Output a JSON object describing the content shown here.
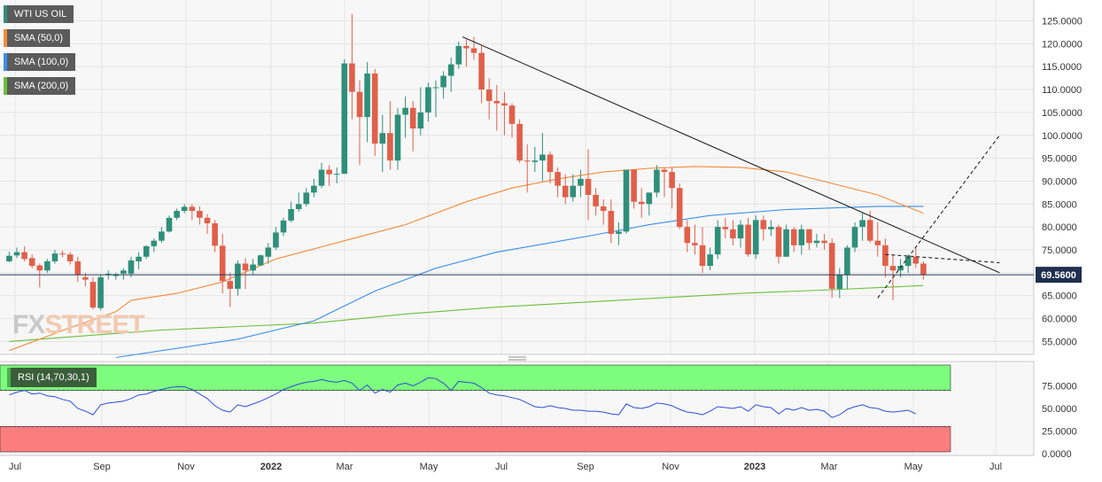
{
  "legend": [
    {
      "label": "WTI US OIL",
      "color": "#2f8f7a"
    },
    {
      "label": "SMA (50,0)",
      "color": "#f28a3a"
    },
    {
      "label": "SMA (100,0)",
      "color": "#3a8ee6"
    },
    {
      "label": "SMA (200,0)",
      "color": "#6abf3a"
    }
  ],
  "rsi_legend": {
    "label": "RSI (14,70,30,1)",
    "color": "#4caf50"
  },
  "watermark": {
    "fx": "FX",
    "street": "STREET"
  },
  "last_price": {
    "label": "69.5600",
    "value": 69.56
  },
  "colors": {
    "up": "#2f8f7a",
    "down": "#e0604a",
    "sma50": "#f28a3a",
    "sma100": "#3a8ee6",
    "sma200": "#6abf3a",
    "rsi_line": "#2b4fd4",
    "overbought_zone": "#7dfc7d",
    "oversold_zone": "#fc7d7d"
  },
  "chart_data": [
    {
      "type": "candlestick",
      "title": "WTI US OIL",
      "y_ticks": [
        "125.0000",
        "120.0000",
        "115.0000",
        "110.0000",
        "105.0000",
        "100.0000",
        "95.0000",
        "90.0000",
        "85.0000",
        "80.0000",
        "75.0000",
        "70.0000",
        "65.0000",
        "60.0000",
        "55.0000"
      ],
      "ylim": [
        51,
        128
      ],
      "x_ticks": [
        "Jul",
        "Sep",
        "Nov",
        "2022",
        "Mar",
        "May",
        "Jul",
        "Sep",
        "Nov",
        "2023",
        "Mar",
        "May",
        "Jul"
      ],
      "candles": [
        [
          72.5,
          73.7,
          72.3,
          74.6
        ],
        [
          73.8,
          74.5,
          73.2,
          75.5
        ],
        [
          74.5,
          73.0,
          72.5,
          75.8
        ],
        [
          73.2,
          71.5,
          71.0,
          74.0
        ],
        [
          71.6,
          70.5,
          66.8,
          72.0
        ],
        [
          70.5,
          72.5,
          70.0,
          73.0
        ],
        [
          72.5,
          74.2,
          72.0,
          75.0
        ],
        [
          74.2,
          74.0,
          73.4,
          74.8
        ],
        [
          74.0,
          72.5,
          71.8,
          74.5
        ],
        [
          72.5,
          69.5,
          68.0,
          73.5
        ],
        [
          69.0,
          68.5,
          67.0,
          70.0
        ],
        [
          68.0,
          62.4,
          62.0,
          69.0
        ],
        [
          62.3,
          69.0,
          61.8,
          69.5
        ],
        [
          69.5,
          69.8,
          68.5,
          70.5
        ],
        [
          69.3,
          69.7,
          68.5,
          70.0
        ],
        [
          69.8,
          70.5,
          68.5,
          71.0
        ],
        [
          69.8,
          72.7,
          69.0,
          73.5
        ],
        [
          72.5,
          73.5,
          70.8,
          74.5
        ],
        [
          73.5,
          75.8,
          73.0,
          76.0
        ],
        [
          75.8,
          77.0,
          74.5,
          77.5
        ],
        [
          77.0,
          79.0,
          76.5,
          80.0
        ],
        [
          79.0,
          82.0,
          78.8,
          82.5
        ],
        [
          82.0,
          83.5,
          81.5,
          84.0
        ],
        [
          83.5,
          84.4,
          83.0,
          85.0
        ],
        [
          84.4,
          83.5,
          81.5,
          85.0
        ],
        [
          83.5,
          82.0,
          80.5,
          84.5
        ],
        [
          82.0,
          80.8,
          78.5,
          82.8
        ],
        [
          80.8,
          75.9,
          74.5,
          81.5
        ],
        [
          75.9,
          68.2,
          65.5,
          78.5
        ],
        [
          68.2,
          66.5,
          62.5,
          70.0
        ],
        [
          66.5,
          72.0,
          65.0,
          72.7
        ],
        [
          72.0,
          70.5,
          66.5,
          73.2
        ],
        [
          70.5,
          71.8,
          69.5,
          73.0
        ],
        [
          71.6,
          73.8,
          71.5,
          74.0
        ],
        [
          73.5,
          75.5,
          72.0,
          76.5
        ],
        [
          75.5,
          78.8,
          75.0,
          80.0
        ],
        [
          78.8,
          81.4,
          78.0,
          82.0
        ],
        [
          81.4,
          83.9,
          81.0,
          85.5
        ],
        [
          83.9,
          85.0,
          83.3,
          87.5
        ],
        [
          85.0,
          87.5,
          84.5,
          88.5
        ],
        [
          87.5,
          89.0,
          86.5,
          90.5
        ],
        [
          89.0,
          92.5,
          88.5,
          94.0
        ],
        [
          92.5,
          91.5,
          89.0,
          93.5
        ],
        [
          91.5,
          91.6,
          89.5,
          93.0
        ],
        [
          91.6,
          115.7,
          91.6,
          116.6
        ],
        [
          115.7,
          109.5,
          103.5,
          126.5
        ],
        [
          109.5,
          104.0,
          93.5,
          112.0
        ],
        [
          104.0,
          113.5,
          98.5,
          116.0
        ],
        [
          113.5,
          98.2,
          95.5,
          114.5
        ],
        [
          98.2,
          100.5,
          92.0,
          104.5
        ],
        [
          100.5,
          94.5,
          92.5,
          107.5
        ],
        [
          94.5,
          104.5,
          92.5,
          106.0
        ],
        [
          104.5,
          106.0,
          99.5,
          108.5
        ],
        [
          106.0,
          101.5,
          96.5,
          107.5
        ],
        [
          101.5,
          105.0,
          100.0,
          110.5
        ],
        [
          105.0,
          110.5,
          103.0,
          111.5
        ],
        [
          110.5,
          110.5,
          104.0,
          112.0
        ],
        [
          110.5,
          113.0,
          108.0,
          114.0
        ],
        [
          113.0,
          115.5,
          109.5,
          117.0
        ],
        [
          115.5,
          119.5,
          114.5,
          120.5
        ],
        [
          119.5,
          119.0,
          115.0,
          121.0
        ],
        [
          119.0,
          118.0,
          116.5,
          121.5
        ],
        [
          118.0,
          110.0,
          107.0,
          119.5
        ],
        [
          110.0,
          107.5,
          103.5,
          112.5
        ],
        [
          107.5,
          107.0,
          101.0,
          111.0
        ],
        [
          107.0,
          106.5,
          100.0,
          109.5
        ],
        [
          106.5,
          102.5,
          99.5,
          107.0
        ],
        [
          102.5,
          94.5,
          94.0,
          103.5
        ],
        [
          94.5,
          94.3,
          87.5,
          98.0
        ],
        [
          94.2,
          94.5,
          92.0,
          97.5
        ],
        [
          94.5,
          95.8,
          90.0,
          100.5
        ],
        [
          95.8,
          92.0,
          89.5,
          96.5
        ],
        [
          92.0,
          89.0,
          86.5,
          93.0
        ],
        [
          89.0,
          86.5,
          85.0,
          91.5
        ],
        [
          86.5,
          89.0,
          85.5,
          91.5
        ],
        [
          89.0,
          90.5,
          86.5,
          92.5
        ],
        [
          90.5,
          87.0,
          81.5,
          97.0
        ],
        [
          87.0,
          84.5,
          82.5,
          88.5
        ],
        [
          84.5,
          83.5,
          80.5,
          86.0
        ],
        [
          83.5,
          78.5,
          76.5,
          86.0
        ],
        [
          78.5,
          79.0,
          76.0,
          81.0
        ],
        [
          79.0,
          92.5,
          78.5,
          92.5
        ],
        [
          92.5,
          85.5,
          84.0,
          92.5
        ],
        [
          85.5,
          85.0,
          82.0,
          88.5
        ],
        [
          85.0,
          87.5,
          82.5,
          87.5
        ],
        [
          87.5,
          92.5,
          86.5,
          93.5
        ],
        [
          92.5,
          92.0,
          86.5,
          93.0
        ],
        [
          92.0,
          88.5,
          84.0,
          93.0
        ],
        [
          88.5,
          80.0,
          79.5,
          89.5
        ],
        [
          80.0,
          76.5,
          74.5,
          81.5
        ],
        [
          76.5,
          76.0,
          74.0,
          80.5
        ],
        [
          76.0,
          71.5,
          70.0,
          80.0
        ],
        [
          71.5,
          74.0,
          70.5,
          75.5
        ],
        [
          74.0,
          80.0,
          73.0,
          81.5
        ],
        [
          80.0,
          79.5,
          77.5,
          82.0
        ],
        [
          79.5,
          77.5,
          76.0,
          81.5
        ],
        [
          77.5,
          80.5,
          75.5,
          81.5
        ],
        [
          80.5,
          74.0,
          73.5,
          82.0
        ],
        [
          74.0,
          81.5,
          73.0,
          82.5
        ],
        [
          81.5,
          79.5,
          77.0,
          82.5
        ],
        [
          79.5,
          80.0,
          78.0,
          81.5
        ],
        [
          80.0,
          73.5,
          72.0,
          80.5
        ],
        [
          73.5,
          79.5,
          73.5,
          80.5
        ],
        [
          79.5,
          76.0,
          74.5,
          80.0
        ],
        [
          76.0,
          79.5,
          74.0,
          80.5
        ],
        [
          79.5,
          76.5,
          75.0,
          79.5
        ],
        [
          76.5,
          77.0,
          75.5,
          78.5
        ],
        [
          77.0,
          76.5,
          75.0,
          78.5
        ],
        [
          76.5,
          66.5,
          64.5,
          77.5
        ],
        [
          66.5,
          69.5,
          64.5,
          71.0
        ],
        [
          69.5,
          75.5,
          66.5,
          76.0
        ],
        [
          75.5,
          80.0,
          74.5,
          81.0
        ],
        [
          80.0,
          81.5,
          77.0,
          83.0
        ],
        [
          81.5,
          77.0,
          76.5,
          83.5
        ],
        [
          77.0,
          76.0,
          73.5,
          81.0
        ],
        [
          76.0,
          71.5,
          69.0,
          77.5
        ],
        [
          71.5,
          70.5,
          64.0,
          74.0
        ],
        [
          70.5,
          71.5,
          69.0,
          73.0
        ],
        [
          71.5,
          73.5,
          70.0,
          74.0
        ],
        [
          73.5,
          72.0,
          71.0,
          75.5
        ],
        [
          72.0,
          69.56,
          68.5,
          72.5
        ]
      ],
      "sma50": [
        [
          0,
          53.0
        ],
        [
          8,
          58.0
        ],
        [
          14,
          61.5
        ],
        [
          16,
          64.0
        ],
        [
          22,
          65.5
        ],
        [
          28,
          68.0
        ],
        [
          35,
          73.0
        ],
        [
          44,
          77.0
        ],
        [
          52,
          80.5
        ],
        [
          60,
          85.5
        ],
        [
          66,
          88.5
        ],
        [
          72,
          90.5
        ],
        [
          78,
          92.0
        ],
        [
          84,
          92.8
        ],
        [
          90,
          93.2
        ],
        [
          96,
          93.0
        ],
        [
          102,
          92.0
        ],
        [
          108,
          89.5
        ],
        [
          114,
          87.0
        ],
        [
          120,
          83.0
        ]
      ],
      "sma100": [
        [
          14,
          51.5
        ],
        [
          30,
          55.5
        ],
        [
          40,
          59.5
        ],
        [
          48,
          66.0
        ],
        [
          56,
          71.0
        ],
        [
          64,
          74.5
        ],
        [
          76,
          78.0
        ],
        [
          84,
          80.5
        ],
        [
          92,
          82.5
        ],
        [
          102,
          83.8
        ],
        [
          114,
          84.5
        ],
        [
          120,
          84.5
        ]
      ],
      "sma200": [
        [
          0,
          55.0
        ],
        [
          20,
          57.5
        ],
        [
          40,
          59.0
        ],
        [
          52,
          61.0
        ],
        [
          64,
          62.5
        ],
        [
          80,
          64.0
        ],
        [
          96,
          65.5
        ],
        [
          108,
          66.3
        ],
        [
          120,
          67.2
        ]
      ],
      "trendlines": [
        {
          "style": "solid",
          "from": [
            59.5,
            121.5
          ],
          "to": [
            130,
            70.0
          ]
        },
        {
          "style": "dashed",
          "from": [
            115,
            74.0
          ],
          "to": [
            130,
            72.2
          ]
        },
        {
          "style": "dashed",
          "from": [
            114,
            64.5
          ],
          "to": [
            130,
            100.0
          ]
        }
      ]
    },
    {
      "type": "line",
      "title": "RSI (14,70,30,1)",
      "y_ticks": [
        "75.0000",
        "50.0000",
        "25.0000",
        "0.0000"
      ],
      "ylim": [
        0,
        100
      ],
      "zones": {
        "overbought": [
          70,
          100
        ],
        "oversold": [
          0,
          30
        ]
      },
      "values": [
        65,
        68,
        70,
        66,
        67,
        64,
        63,
        60,
        58,
        50,
        47,
        43,
        54,
        56,
        57,
        58,
        61,
        65,
        66,
        69,
        71,
        73,
        74,
        74,
        71,
        66,
        61,
        53,
        48,
        46,
        54,
        52,
        55,
        58,
        62,
        66,
        71,
        74,
        77,
        79,
        80,
        82,
        80,
        79,
        81,
        78,
        70,
        76,
        67,
        71,
        68,
        76,
        78,
        75,
        79,
        84,
        83,
        78,
        70,
        80,
        79,
        78,
        73,
        67,
        65,
        64,
        62,
        60,
        56,
        52,
        51,
        53,
        51,
        50,
        48,
        48,
        47,
        47,
        46,
        44,
        43,
        55,
        51,
        50,
        52,
        56,
        55,
        53,
        49,
        46,
        45,
        43,
        47,
        52,
        51,
        50,
        52,
        47,
        54,
        52,
        51,
        44,
        50,
        48,
        51,
        48,
        49,
        47,
        40,
        43,
        49,
        52,
        54,
        51,
        50,
        47,
        46,
        47,
        48,
        44
      ],
      "x_ticks": [
        "Jul",
        "Sep",
        "Nov",
        "2022",
        "Mar",
        "May",
        "Jul",
        "Sep",
        "Nov",
        "2023",
        "Mar",
        "May",
        "Jul"
      ]
    }
  ]
}
